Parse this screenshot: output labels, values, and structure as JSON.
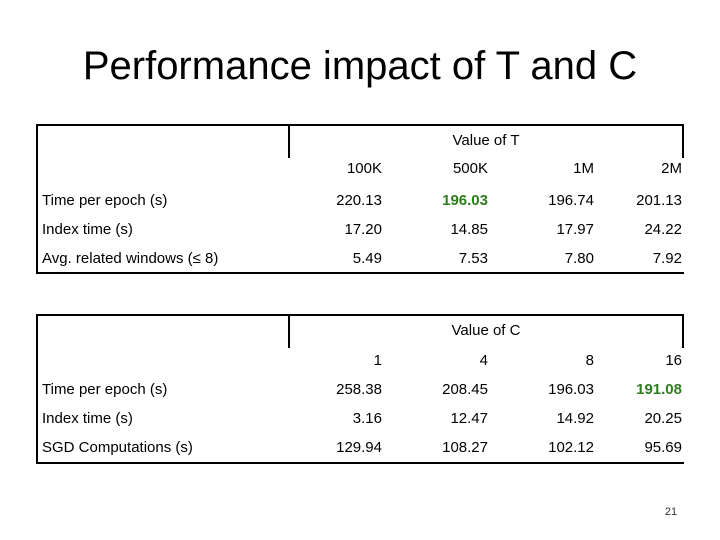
{
  "title": "Performance impact of T and C",
  "table_t": {
    "group_header": "Value of T",
    "columns": [
      "100K",
      "500K",
      "1M",
      "2M"
    ],
    "rows": [
      {
        "label": "Time per epoch (s)",
        "values": [
          "220.13",
          "196.03",
          "196.74",
          "201.13"
        ]
      },
      {
        "label": "Index time (s)",
        "values": [
          "17.20",
          "14.85",
          "17.97",
          "24.22"
        ]
      },
      {
        "label": "Avg. related windows (≤ 8)",
        "values": [
          "5.49",
          "7.53",
          "7.80",
          "7.92"
        ]
      }
    ],
    "highlight_color": "#2e7d1e"
  },
  "table_c": {
    "group_header": "Value of C",
    "columns": [
      "1",
      "4",
      "8",
      "16"
    ],
    "rows": [
      {
        "label": "Time per epoch (s)",
        "values": [
          "258.38",
          "208.45",
          "196.03",
          "191.08"
        ]
      },
      {
        "label": "Index time (s)",
        "values": [
          "3.16",
          "12.47",
          "14.92",
          "20.25"
        ]
      },
      {
        "label": "SGD Computations (s)",
        "values": [
          "129.94",
          "108.27",
          "102.12",
          "95.69"
        ]
      }
    ],
    "highlight_color": "#2e7d1e"
  },
  "page_number": "21"
}
